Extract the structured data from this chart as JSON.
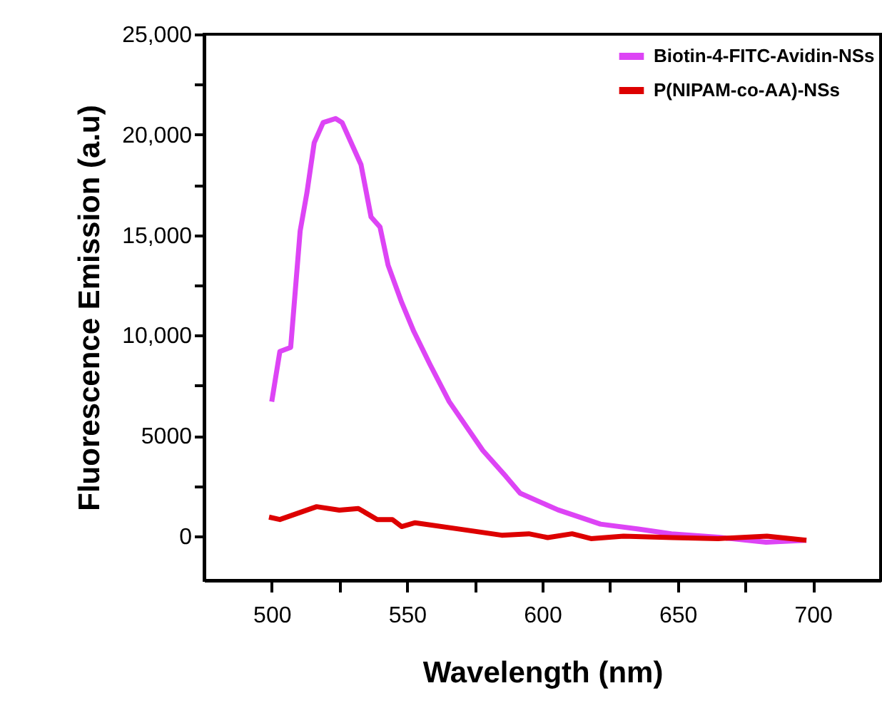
{
  "chart_data": {
    "type": "line",
    "xlabel": "Wavelength (nm)",
    "ylabel": "Fluorescence Emission (a.u)",
    "xlim": [
      475,
      725
    ],
    "ylim": [
      -2200,
      25000
    ],
    "xticks": [
      500,
      {
        "value": 525,
        "label": null
      },
      550,
      {
        "value": 575,
        "label": null
      },
      600,
      {
        "value": 625,
        "label": null
      },
      650,
      {
        "value": 675,
        "label": null
      },
      700
    ],
    "yticks": [
      0,
      {
        "value": 2500,
        "label": null
      },
      5000,
      {
        "value": 7500,
        "label": null
      },
      {
        "value": 10000,
        "label": "10,000"
      },
      {
        "value": 12500,
        "label": null
      },
      {
        "value": 15000,
        "label": "15,000"
      },
      {
        "value": 17500,
        "label": null
      },
      {
        "value": 20000,
        "label": "20,000"
      },
      {
        "value": 22500,
        "label": null
      },
      {
        "value": 25000,
        "label": "25,000"
      }
    ],
    "grid": false,
    "legend": "top right",
    "marker": "none",
    "line_style": "solid",
    "series": [
      {
        "name": "Biotin-4-FITC-Avidin-NSs",
        "color": "#dd44f5",
        "x": [
          500,
          503,
          507,
          510.5,
          513,
          515.7,
          519,
          523.6,
          526,
          529,
          533,
          536.7,
          540,
          543,
          548,
          552.5,
          558.5,
          565.6,
          578,
          586.6,
          591.8,
          605.8,
          621.5,
          635.5,
          647.7,
          665,
          682.7,
          697.6
        ],
        "values": [
          6700,
          9200,
          9400,
          15200,
          17100,
          19600,
          20600,
          20800,
          20600,
          19700,
          18500,
          15900,
          15400,
          13500,
          11650,
          10200,
          8550,
          6700,
          4270,
          2970,
          2140,
          1310,
          600,
          360,
          120,
          -50,
          -300,
          -200
        ]
      },
      {
        "name": "P(NIPAM-co-AA)-NSs",
        "color": "#dd0000",
        "x": [
          499,
          503,
          516.6,
          525,
          532,
          539,
          544.6,
          548,
          553,
          569,
          585,
          595,
          602,
          611,
          618,
          630,
          648,
          665,
          683,
          697.6
        ],
        "values": [
          950,
          830,
          1470,
          1300,
          1380,
          830,
          830,
          480,
          670,
          360,
          50,
          120,
          -70,
          120,
          -120,
          0,
          -70,
          -120,
          0,
          -200
        ]
      }
    ]
  }
}
